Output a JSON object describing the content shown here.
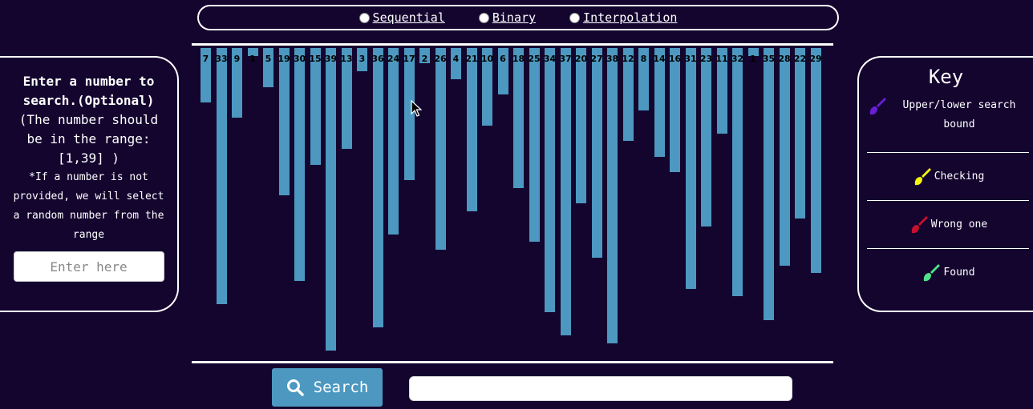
{
  "algorithms": [
    {
      "label": "Sequential"
    },
    {
      "label": "Binary"
    },
    {
      "label": "Interpolation"
    }
  ],
  "colors": {
    "background": "#14052f",
    "bar": "#4c98c0",
    "bound": "#6a1fd6",
    "checking": "#f5f50a",
    "wrong": "#c8102e",
    "found": "#4ee38a"
  },
  "chart_data": {
    "type": "bar",
    "categories": [
      "7",
      "33",
      "9",
      "1",
      "5",
      "19",
      "30",
      "15",
      "39",
      "13",
      "3",
      "36",
      "24",
      "17",
      "2",
      "26",
      "4",
      "21",
      "10",
      "6",
      "18",
      "25",
      "34",
      "37",
      "20",
      "27",
      "38",
      "12",
      "8",
      "14",
      "16",
      "31",
      "23",
      "11",
      "32",
      "1",
      "35",
      "28",
      "22",
      "29"
    ],
    "values": [
      7,
      33,
      9,
      1,
      5,
      19,
      30,
      15,
      39,
      13,
      3,
      36,
      24,
      17,
      2,
      26,
      4,
      21,
      10,
      6,
      18,
      25,
      34,
      37,
      20,
      27,
      38,
      12,
      8,
      14,
      16,
      31,
      23,
      11,
      32,
      1,
      35,
      28,
      22,
      29
    ],
    "ylim": [
      0,
      39
    ]
  },
  "search_panel": {
    "title": "Enter a number to search.(Optional)",
    "range_text": "(The number should be in the range: [1,39] )",
    "note": "*If a number is not provided, we will select a random number from the range",
    "input_placeholder": "Enter here"
  },
  "key": {
    "title": "Key",
    "items": [
      {
        "label": "Upper/lower search bound",
        "icon": "brush-icon-purple"
      },
      {
        "label": "Checking",
        "icon": "brush-icon-yellow"
      },
      {
        "label": "Wrong one",
        "icon": "brush-icon-red"
      },
      {
        "label": "Found",
        "icon": "brush-icon-green"
      }
    ]
  },
  "controls": {
    "search_label": "Search",
    "status_value": ""
  }
}
